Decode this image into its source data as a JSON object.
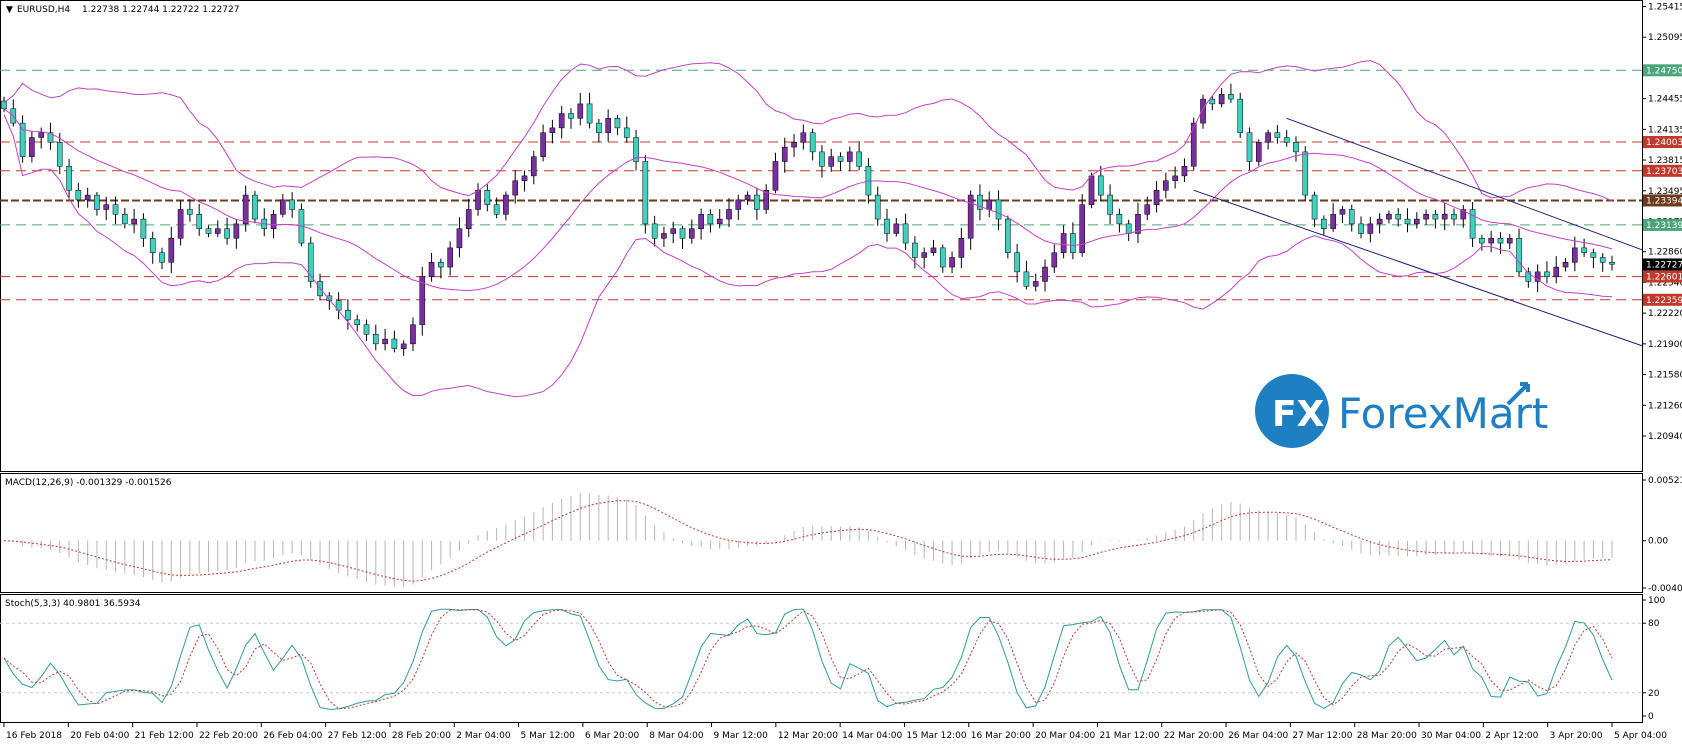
{
  "header": {
    "symbol": "EURUSD,H4",
    "ohlc": "1.22738 1.22744 1.22722 1.22727"
  },
  "logo": {
    "mark": "FX",
    "name": "ForexMart"
  },
  "colors": {
    "bull": "#7a2ea0",
    "bear": "#3fd1c0",
    "bands": "#c341c8",
    "channel": "#1d1d7a",
    "red_level": "#c0392b",
    "green_level": "#4aa67a",
    "brown_level": "#6b3a1a",
    "macd_hist": "#b5b5b5",
    "macd_signal": "#c0392b",
    "stoch_main": "#2f9aa0",
    "stoch_signal": "#c0392b"
  },
  "chart_data": [
    {
      "type": "candlestick",
      "title": "EURUSD,H4",
      "price_axis_ticks": [
        "1.25415",
        "1.25095",
        "1.24765",
        "1.24455",
        "1.24135",
        "1.23815",
        "1.23495",
        "1.23175",
        "1.22860",
        "1.22540",
        "1.22220",
        "1.21900",
        "1.21580",
        "1.21260",
        "1.20940"
      ],
      "ylim": [
        1.2094,
        1.2542
      ],
      "x_ticks": [
        "16 Feb 2018",
        "20 Feb 04:00",
        "21 Feb 12:00",
        "22 Feb 20:00",
        "26 Feb 04:00",
        "27 Feb 12:00",
        "28 Feb 20:00",
        "2 Mar 04:00",
        "5 Mar 12:00",
        "6 Mar 20:00",
        "8 Mar 04:00",
        "9 Mar 12:00",
        "12 Mar 20:00",
        "14 Mar 04:00",
        "15 Mar 12:00",
        "16 Mar 20:00",
        "20 Mar 04:00",
        "21 Mar 12:00",
        "22 Mar 20:00",
        "26 Mar 04:00",
        "27 Mar 12:00",
        "28 Mar 20:00",
        "30 Mar 04:00",
        "2 Apr 12:00",
        "3 Apr 20:00",
        "5 Apr 04:00"
      ],
      "levels": [
        {
          "value": "1.24750",
          "kind": "green"
        },
        {
          "value": "1.24003",
          "kind": "red"
        },
        {
          "value": "1.23703",
          "kind": "red"
        },
        {
          "value": "1.23394",
          "kind": "brown"
        },
        {
          "value": "1.23139",
          "kind": "green"
        },
        {
          "value": "1.22601",
          "kind": "red"
        },
        {
          "value": "1.22359",
          "kind": "red"
        }
      ],
      "current_price": "1.22727",
      "closes": [
        1.2435,
        1.242,
        1.2385,
        1.2405,
        1.241,
        1.24,
        1.2375,
        1.235,
        1.234,
        1.2345,
        1.233,
        1.2335,
        1.2325,
        1.2315,
        1.232,
        1.23,
        1.2285,
        1.2275,
        1.23,
        1.233,
        1.2325,
        1.231,
        1.2305,
        1.231,
        1.23,
        1.2315,
        1.2345,
        1.232,
        1.231,
        1.2325,
        1.234,
        1.233,
        1.2295,
        1.2255,
        1.224,
        1.2235,
        1.2225,
        1.2215,
        1.221,
        1.22,
        1.219,
        1.2195,
        1.2185,
        1.219,
        1.221,
        1.226,
        1.2275,
        1.227,
        1.229,
        1.231,
        1.233,
        1.235,
        1.2335,
        1.2325,
        1.2345,
        1.236,
        1.2365,
        1.2385,
        1.241,
        1.2415,
        1.243,
        1.2425,
        1.244,
        1.242,
        1.241,
        1.2425,
        1.2415,
        1.2405,
        1.238,
        1.2315,
        1.23,
        1.2305,
        1.231,
        1.23,
        1.231,
        1.2325,
        1.2315,
        1.232,
        1.233,
        1.234,
        1.2345,
        1.233,
        1.235,
        1.238,
        1.2395,
        1.24,
        1.241,
        1.239,
        1.2375,
        1.2385,
        1.238,
        1.239,
        1.2375,
        1.2345,
        1.232,
        1.2305,
        1.2315,
        1.2295,
        1.228,
        1.2285,
        1.229,
        1.227,
        1.228,
        1.23,
        1.2345,
        1.233,
        1.234,
        1.232,
        1.2285,
        1.2265,
        1.225,
        1.2255,
        1.227,
        1.2285,
        1.2305,
        1.2285,
        1.2335,
        1.2365,
        1.2345,
        1.2325,
        1.2315,
        1.2305,
        1.2325,
        1.2335,
        1.235,
        1.236,
        1.2365,
        1.2375,
        1.242,
        1.2445,
        1.244,
        1.245,
        1.2445,
        1.241,
        1.238,
        1.24,
        1.241,
        1.2405,
        1.24,
        1.239,
        1.2345,
        1.232,
        1.231,
        1.2325,
        1.233,
        1.2315,
        1.2305,
        1.2315,
        1.232,
        1.2325,
        1.232,
        1.2315,
        1.232,
        1.2325,
        1.232,
        1.2325,
        1.232,
        1.233,
        1.23,
        1.2295,
        1.23,
        1.2295,
        1.23,
        1.2265,
        1.2255,
        1.2265,
        1.226,
        1.227,
        1.2275,
        1.229,
        1.2285,
        1.228,
        1.2275,
        1.2273
      ]
    },
    {
      "type": "histogram+line",
      "title": "MACD(12,26,9) -0.001329 -0.001526",
      "y_ticks": [
        "0.005219",
        "0.00",
        "-0.004065"
      ],
      "ylim": [
        -0.004065,
        0.005219
      ]
    },
    {
      "type": "line",
      "title": "Stoch(5,3,3) 40.9801 36.5934",
      "y_ticks": [
        "100",
        "80",
        "20",
        "0"
      ],
      "ylim": [
        0,
        100
      ]
    }
  ]
}
